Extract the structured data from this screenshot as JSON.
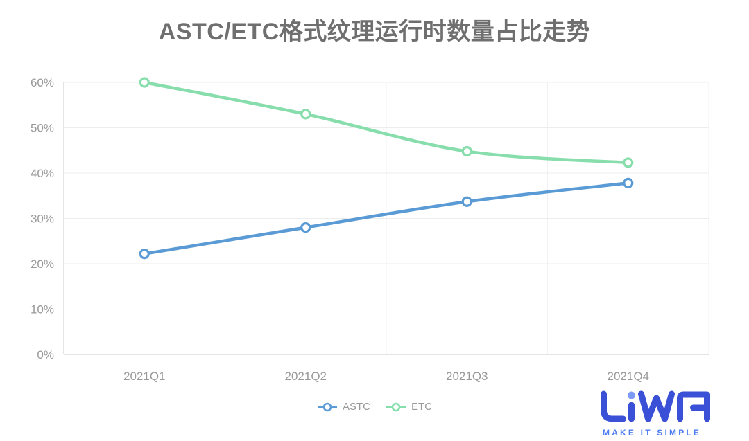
{
  "chart_data": {
    "type": "line",
    "title": "ASTC/ETC格式纹理运行时数量占比走势",
    "categories": [
      "2021Q1",
      "2021Q2",
      "2021Q3",
      "2021Q4"
    ],
    "series": [
      {
        "name": "ASTC",
        "color": "#5B9BD5",
        "values": [
          22.2,
          28.0,
          33.7,
          37.8
        ]
      },
      {
        "name": "ETC",
        "color": "#87DDAB",
        "values": [
          60.0,
          53.0,
          44.8,
          42.3
        ]
      }
    ],
    "ylim": [
      0,
      60
    ],
    "y_tick_values": [
      0,
      10,
      20,
      30,
      40,
      50,
      60
    ],
    "y_tick_labels": [
      "0%",
      "10%",
      "20%",
      "30%",
      "40%",
      "50%",
      "60%"
    ],
    "xlabel": "",
    "ylabel": "",
    "grid": true,
    "smooth": true,
    "legend_position": "bottom-center",
    "marker": "open-circle"
  },
  "colors": {
    "axis_line": "#c9c9c9",
    "grid_horizontal": "#ededed",
    "grid_vertical": "#f2f0f4",
    "tick_label": "#999999",
    "title_text": "#6f6f6f",
    "background": "#ffffff"
  },
  "legend": {
    "items": [
      {
        "label": "ASTC"
      },
      {
        "label": "ETC"
      }
    ]
  },
  "logo": {
    "text": "LiWA",
    "slogan": "MAKE IT SIMPLE",
    "primary_color": "#3A50D6",
    "accent_color": "#7D9BF5",
    "slogan_color": "#4D7DF2"
  }
}
